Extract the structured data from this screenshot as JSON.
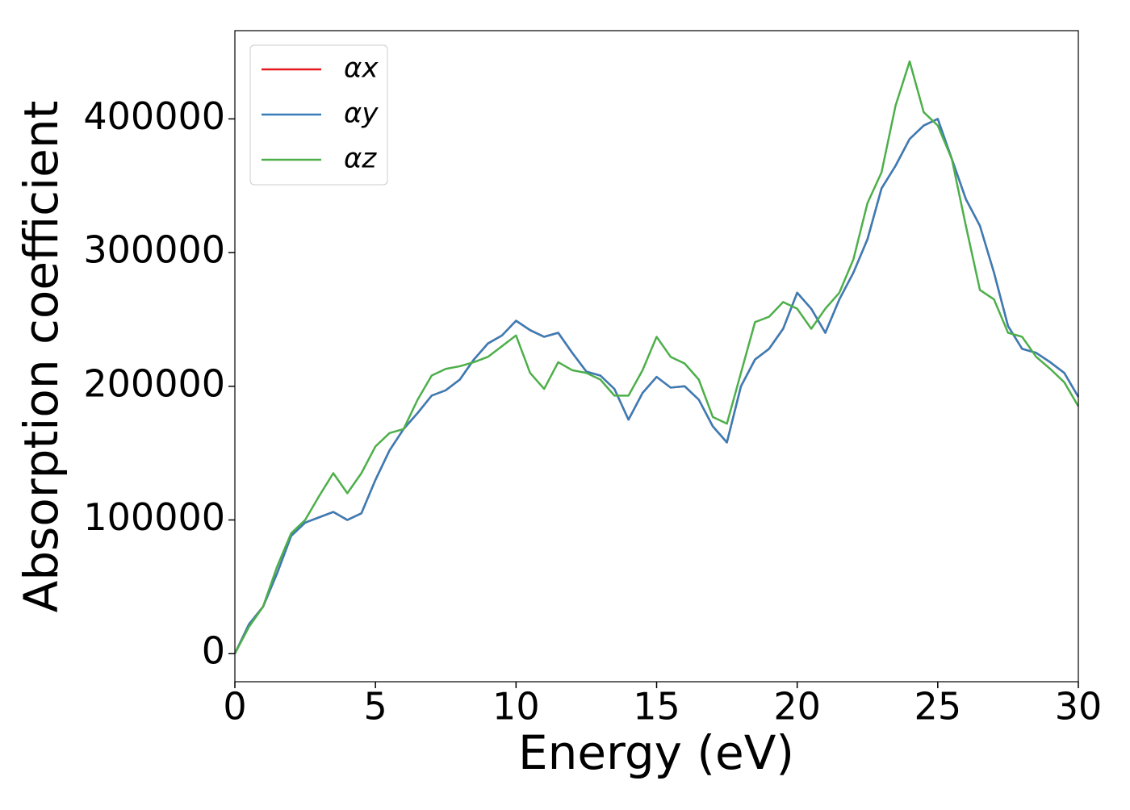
{
  "chart_data": {
    "type": "line",
    "xlabel": "Energy (eV)",
    "ylabel": "Absorption coefficient",
    "x": [
      0,
      0.5,
      1,
      1.5,
      2,
      2.5,
      3,
      3.5,
      4,
      4.5,
      5,
      5.5,
      6,
      6.5,
      7,
      7.5,
      8,
      8.5,
      9,
      9.5,
      10,
      10.5,
      11,
      11.5,
      12,
      12.5,
      13,
      13.5,
      14,
      14.5,
      15,
      15.5,
      16,
      16.5,
      17,
      17.5,
      18,
      18.5,
      19,
      19.5,
      20,
      20.5,
      21,
      21.5,
      22,
      22.5,
      23,
      23.5,
      24,
      24.5,
      25,
      25.5,
      26,
      26.5,
      27,
      27.5,
      28,
      28.5,
      29,
      29.5,
      30
    ],
    "series": [
      {
        "name": "αx",
        "color": "#e41a1c",
        "values": [
          0,
          22000,
          35000,
          60000,
          88000,
          98000,
          102000,
          106000,
          100000,
          105000,
          130000,
          152000,
          168000,
          180000,
          193000,
          197000,
          205000,
          220000,
          232000,
          238000,
          249000,
          242000,
          237000,
          240000,
          225000,
          211000,
          208000,
          198000,
          175000,
          195000,
          207000,
          199000,
          200000,
          190000,
          170000,
          158000,
          200000,
          220000,
          228000,
          243000,
          270000,
          258000,
          240000,
          265000,
          285000,
          310000,
          348000,
          365000,
          385000,
          395000,
          400000,
          370000,
          340000,
          320000,
          285000,
          245000,
          228000,
          225000,
          218000,
          210000,
          192000
        ]
      },
      {
        "name": "αy",
        "color": "#377eb8",
        "values": [
          0,
          22000,
          35000,
          60000,
          88000,
          98000,
          102000,
          106000,
          100000,
          105000,
          130000,
          152000,
          168000,
          180000,
          193000,
          197000,
          205000,
          220000,
          232000,
          238000,
          249000,
          242000,
          237000,
          240000,
          225000,
          211000,
          208000,
          198000,
          175000,
          195000,
          207000,
          199000,
          200000,
          190000,
          170000,
          158000,
          200000,
          220000,
          228000,
          243000,
          270000,
          258000,
          240000,
          265000,
          285000,
          310000,
          348000,
          365000,
          385000,
          395000,
          400000,
          370000,
          340000,
          320000,
          285000,
          245000,
          228000,
          225000,
          218000,
          210000,
          192000
        ]
      },
      {
        "name": "αz",
        "color": "#4daf4a",
        "values": [
          0,
          20000,
          35000,
          65000,
          90000,
          100000,
          118000,
          135000,
          120000,
          135000,
          155000,
          165000,
          168000,
          190000,
          208000,
          213000,
          215000,
          218000,
          222000,
          230000,
          238000,
          210000,
          198000,
          218000,
          212000,
          210000,
          205000,
          193000,
          193000,
          212000,
          237000,
          222000,
          217000,
          205000,
          177000,
          172000,
          210000,
          248000,
          252000,
          263000,
          258000,
          243000,
          258000,
          270000,
          295000,
          337000,
          360000,
          410000,
          443000,
          405000,
          395000,
          370000,
          320000,
          272000,
          265000,
          240000,
          237000,
          222000,
          213000,
          203000,
          185000
        ]
      }
    ],
    "xlim": [
      0,
      30
    ],
    "xticks": [
      0,
      5,
      10,
      15,
      20,
      25,
      30
    ],
    "ylim": [
      -21000,
      466000
    ],
    "yticks": [
      0,
      100000,
      200000,
      300000,
      400000
    ],
    "legend": "upper left"
  }
}
